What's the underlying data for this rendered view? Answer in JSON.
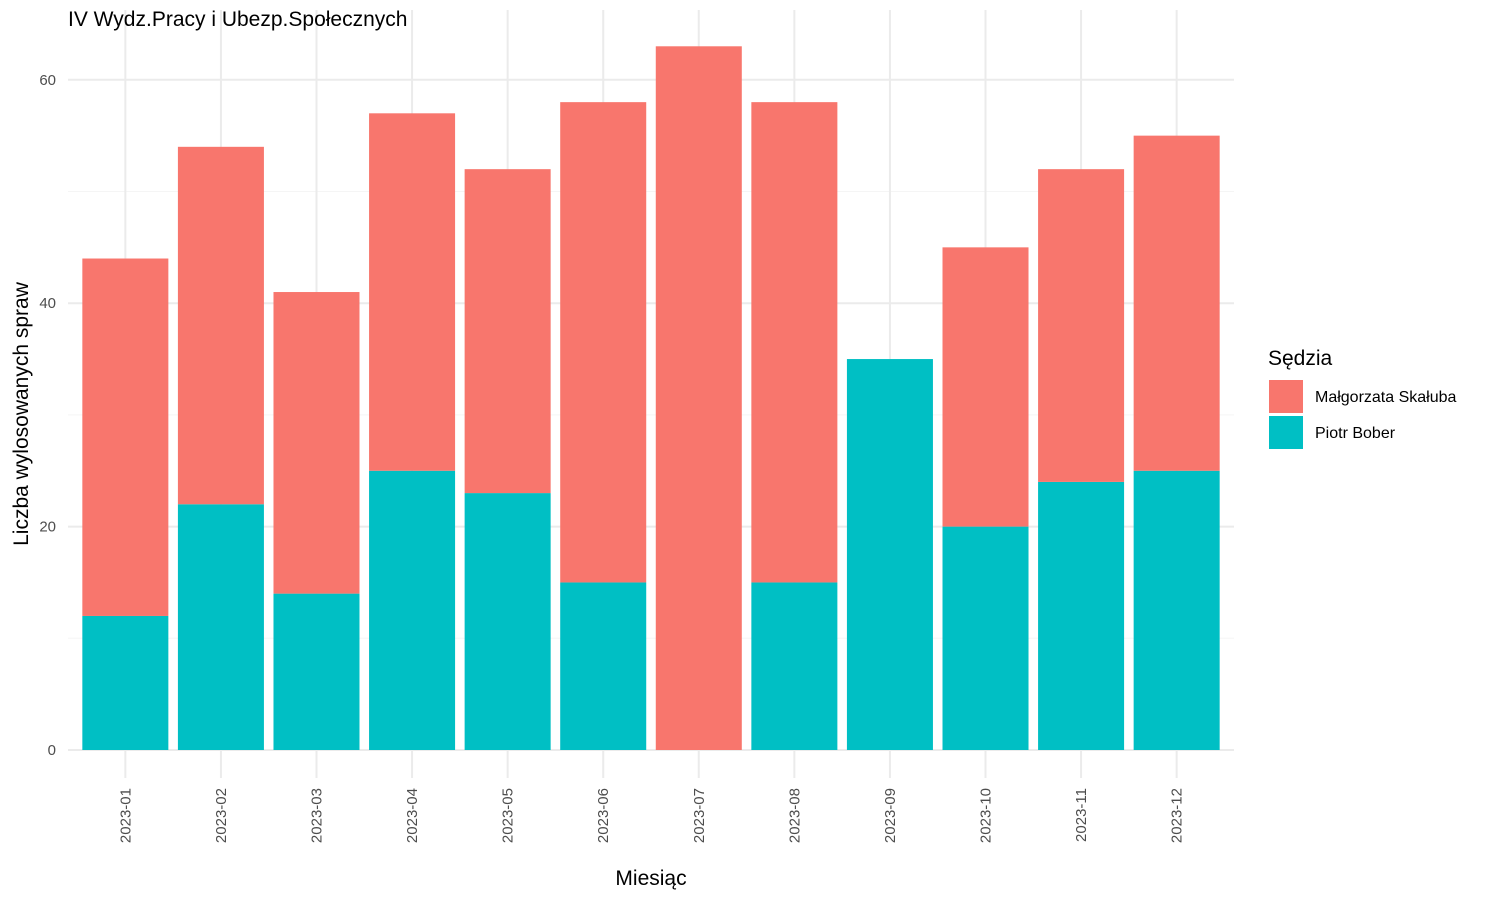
{
  "chart_data": {
    "type": "bar",
    "stacked": true,
    "title": "IV Wydz.Pracy i Ubezp.Społecznych",
    "xlabel": "Miesiąc",
    "ylabel": "Liczba wylosowanych spraw",
    "ylim": [
      0,
      63
    ],
    "yticks": [
      "0",
      "20",
      "40",
      "60"
    ],
    "ytick_values": [
      0,
      20,
      40,
      60
    ],
    "grid": true,
    "legend": {
      "title": "Sędzia",
      "position": "right"
    },
    "categories": [
      "2023-01",
      "2023-02",
      "2023-03",
      "2023-04",
      "2023-05",
      "2023-06",
      "2023-07",
      "2023-08",
      "2023-09",
      "2023-10",
      "2023-11",
      "2023-12"
    ],
    "series": [
      {
        "name": "Piotr Bober",
        "color": "#00BFC4",
        "values": [
          12,
          22,
          14,
          25,
          23,
          15,
          0,
          15,
          35,
          20,
          24,
          25
        ]
      },
      {
        "name": "Małgorzata Skałuba",
        "color": "#F8766D",
        "values": [
          32,
          32,
          27,
          32,
          29,
          43,
          63,
          43,
          0,
          25,
          28,
          30
        ]
      }
    ],
    "legend_order": [
      "Małgorzata Skałuba",
      "Piotr Bober"
    ]
  }
}
